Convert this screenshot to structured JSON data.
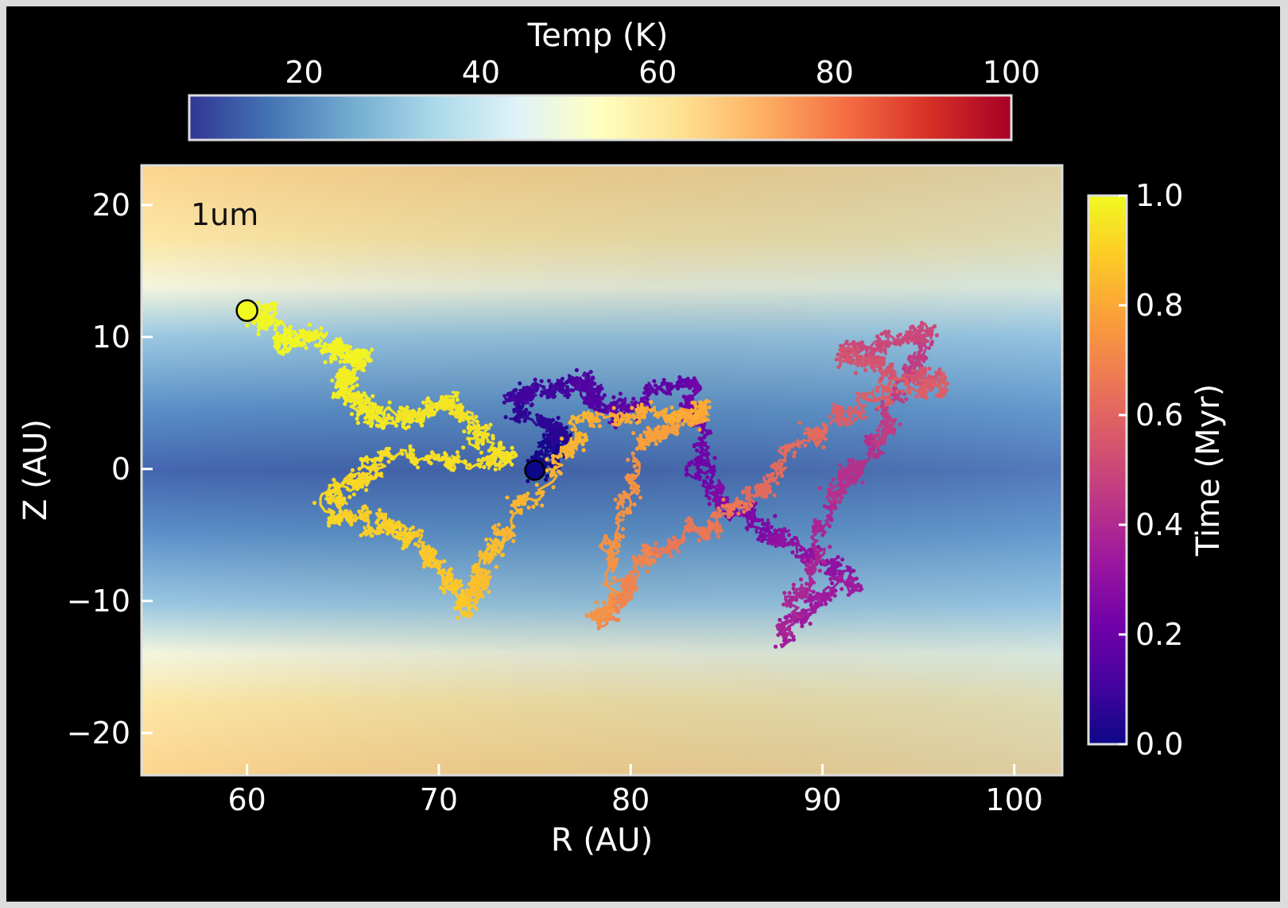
{
  "chart_data": {
    "type": "scatter",
    "title": "",
    "annotation": "1um",
    "xlabel": "R (AU)",
    "ylabel": "Z (AU)",
    "xlim": [
      54.5,
      102.5
    ],
    "ylim": [
      -23.2,
      23.0
    ],
    "x_ticks": [
      60,
      70,
      80,
      90,
      100
    ],
    "x_tick_labels": [
      "60",
      "70",
      "80",
      "90",
      "100"
    ],
    "y_ticks": [
      -20,
      -10,
      0,
      10,
      20
    ],
    "y_tick_labels": [
      "−20",
      "−10",
      "0",
      "10",
      "20"
    ],
    "grid": false,
    "background_field": {
      "quantity": "Temp (K)",
      "colormap": "RdYlBu_r",
      "description": "cold (~15 K) near midplane, warm (~60 K) in upper/lower layers"
    },
    "temp_colorbar": {
      "label": "Temp (K)",
      "orientation": "horizontal",
      "placement": "top",
      "range": [
        7,
        100
      ],
      "ticks": [
        20,
        40,
        60,
        80,
        100
      ],
      "tick_labels": [
        "20",
        "40",
        "60",
        "80",
        "100"
      ],
      "colors": [
        "#313695",
        "#4575b4",
        "#74add1",
        "#abd9e9",
        "#e0f3f8",
        "#ffffbf",
        "#fee090",
        "#fdae61",
        "#f46d43",
        "#d73027",
        "#a50026"
      ]
    },
    "time_colorbar": {
      "label": "Time (Myr)",
      "orientation": "vertical",
      "placement": "right",
      "range": [
        0.0,
        1.0
      ],
      "ticks": [
        0.0,
        0.2,
        0.4,
        0.6,
        0.8,
        1.0
      ],
      "tick_labels": [
        "0.0",
        "0.2",
        "0.4",
        "0.6",
        "0.8",
        "1.0"
      ],
      "colors": [
        "#0d0887",
        "#46039f",
        "#7201a8",
        "#9c179e",
        "#bd3786",
        "#d8576b",
        "#ed7953",
        "#fb9f3a",
        "#fdca26",
        "#f0f921"
      ]
    },
    "start_point": {
      "x": 75.0,
      "z": -0.1,
      "time": 0.0,
      "color": "#0d0887"
    },
    "end_point": {
      "x": 60.0,
      "z": 12.0,
      "time": 1.0,
      "color": "#f0f921"
    },
    "trajectory": [
      {
        "x": 75.0,
        "z": -0.1,
        "time": 0.0
      },
      {
        "x": 76.5,
        "z": 2.5,
        "time": 0.04
      },
      {
        "x": 74.0,
        "z": 5.2,
        "time": 0.08
      },
      {
        "x": 77.5,
        "z": 7.0,
        "time": 0.12
      },
      {
        "x": 79.0,
        "z": 4.0,
        "time": 0.16
      },
      {
        "x": 83.0,
        "z": 6.5,
        "time": 0.2
      },
      {
        "x": 84.0,
        "z": -2.0,
        "time": 0.24
      },
      {
        "x": 87.5,
        "z": -5.0,
        "time": 0.28
      },
      {
        "x": 91.5,
        "z": -8.5,
        "time": 0.32
      },
      {
        "x": 88.0,
        "z": -12.5,
        "time": 0.36
      },
      {
        "x": 90.5,
        "z": -2.0,
        "time": 0.4
      },
      {
        "x": 93.0,
        "z": 2.0,
        "time": 0.44
      },
      {
        "x": 95.5,
        "z": 10.5,
        "time": 0.48
      },
      {
        "x": 91.0,
        "z": 8.5,
        "time": 0.52
      },
      {
        "x": 96.5,
        "z": 6.5,
        "time": 0.56
      },
      {
        "x": 90.0,
        "z": 3.5,
        "time": 0.6
      },
      {
        "x": 86.0,
        "z": -3.0,
        "time": 0.64
      },
      {
        "x": 81.0,
        "z": -6.5,
        "time": 0.68
      },
      {
        "x": 78.5,
        "z": -11.5,
        "time": 0.72
      },
      {
        "x": 80.5,
        "z": 1.5,
        "time": 0.76
      },
      {
        "x": 84.0,
        "z": 4.5,
        "time": 0.8
      },
      {
        "x": 78.0,
        "z": 4.0,
        "time": 0.82
      },
      {
        "x": 73.0,
        "z": -6.0,
        "time": 0.85
      },
      {
        "x": 71.5,
        "z": -10.5,
        "time": 0.87
      },
      {
        "x": 68.5,
        "z": -5.0,
        "time": 0.89
      },
      {
        "x": 64.5,
        "z": -3.5,
        "time": 0.91
      },
      {
        "x": 66.5,
        "z": 0.5,
        "time": 0.93
      },
      {
        "x": 73.5,
        "z": 0.5,
        "time": 0.94
      },
      {
        "x": 70.5,
        "z": 5.0,
        "time": 0.95
      },
      {
        "x": 67.0,
        "z": 3.5,
        "time": 0.96
      },
      {
        "x": 65.0,
        "z": 6.0,
        "time": 0.97
      },
      {
        "x": 66.0,
        "z": 9.0,
        "time": 0.98
      },
      {
        "x": 62.5,
        "z": 9.5,
        "time": 0.99
      },
      {
        "x": 60.0,
        "z": 12.0,
        "time": 1.0
      }
    ]
  }
}
